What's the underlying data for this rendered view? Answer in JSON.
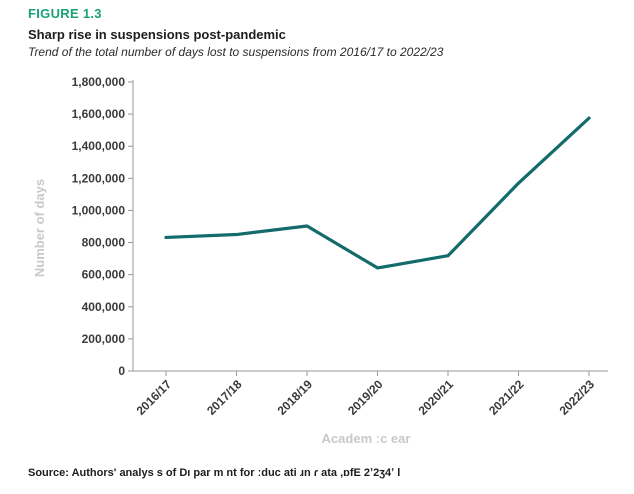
{
  "header": {
    "figure_label": "FIGURE 1.3",
    "title": "Sharp rise in suspensions post-pandemic",
    "subtitle": "Trend of the total number of days lost to suspensions from 2016/17 to 2022/23"
  },
  "footer": {
    "source": "Source: Authors' analys s of Dı par m nt for ːduc ati ɹn ɾ ata ,ɒfE 2ʼ2ʒ4ʼ l"
  },
  "colors": {
    "accent": "#1ba178",
    "line": "#146b6b",
    "axis_label": "#c9c9c9"
  },
  "chart_data": {
    "type": "line",
    "title": "Sharp rise in suspensions post-pandemic",
    "subtitle": "Trend of the total number of days lost to suspensions from 2016/17 to 2022/23",
    "xlabel": "Academ ːc ear",
    "ylabel": "Number of days",
    "categories": [
      "2016/17",
      "2017/18",
      "2018/19",
      "2019/20",
      "2020/21",
      "2021/22",
      "2022/23"
    ],
    "values": [
      832000,
      850000,
      903000,
      642000,
      718000,
      1170000,
      1575000
    ],
    "ylim": [
      0,
      1800000
    ],
    "yticks": [
      0,
      200000,
      400000,
      600000,
      800000,
      1000000,
      1200000,
      1400000,
      1600000,
      1800000
    ],
    "ytick_labels": [
      "0",
      "200,000",
      "400,000",
      "600,000",
      "800,000",
      "1,000,000",
      "1,200,000",
      "1,400,000",
      "1,600,000",
      "1,800,000"
    ],
    "grid": false,
    "legend": "none"
  }
}
